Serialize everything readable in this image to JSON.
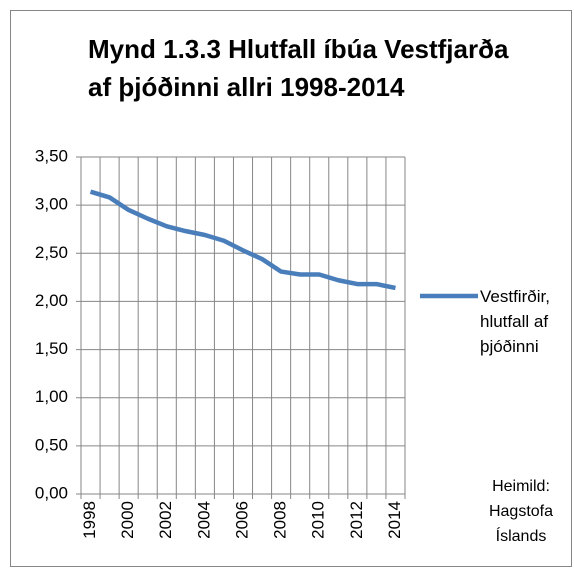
{
  "chart_data": {
    "type": "line",
    "title": "Mynd 1.3.3 Hlutfall íbúa Vestfjarða af þjóðinni allri 1998-2014",
    "categories": [
      "1998",
      null,
      "2000",
      null,
      "2002",
      null,
      "2004",
      null,
      "2006",
      null,
      "2008",
      null,
      "2010",
      null,
      "2012",
      null,
      "2014"
    ],
    "series": [
      {
        "name": "Vestfirðir, hlutfall af þjóðinni",
        "color": "#4a7ebb",
        "values": [
          3.14,
          3.08,
          2.95,
          2.86,
          2.78,
          2.73,
          2.69,
          2.63,
          2.53,
          2.44,
          2.31,
          2.28,
          2.28,
          2.22,
          2.18,
          2.18,
          2.14
        ]
      }
    ],
    "ylim": [
      0,
      3.5
    ],
    "yticks": [
      {
        "value": 0,
        "label": "0,00"
      },
      {
        "value": 0.5,
        "label": "0,50"
      },
      {
        "value": 1,
        "label": "1,00"
      },
      {
        "value": 1.5,
        "label": "1,50"
      },
      {
        "value": 2,
        "label": "2,00"
      },
      {
        "value": 2.5,
        "label": "2,50"
      },
      {
        "value": 3,
        "label": "3,00"
      },
      {
        "value": 3.5,
        "label": "3,50"
      }
    ],
    "grid": true,
    "legend": "right",
    "annotation": "Heimild: Hagstofa Íslands"
  }
}
